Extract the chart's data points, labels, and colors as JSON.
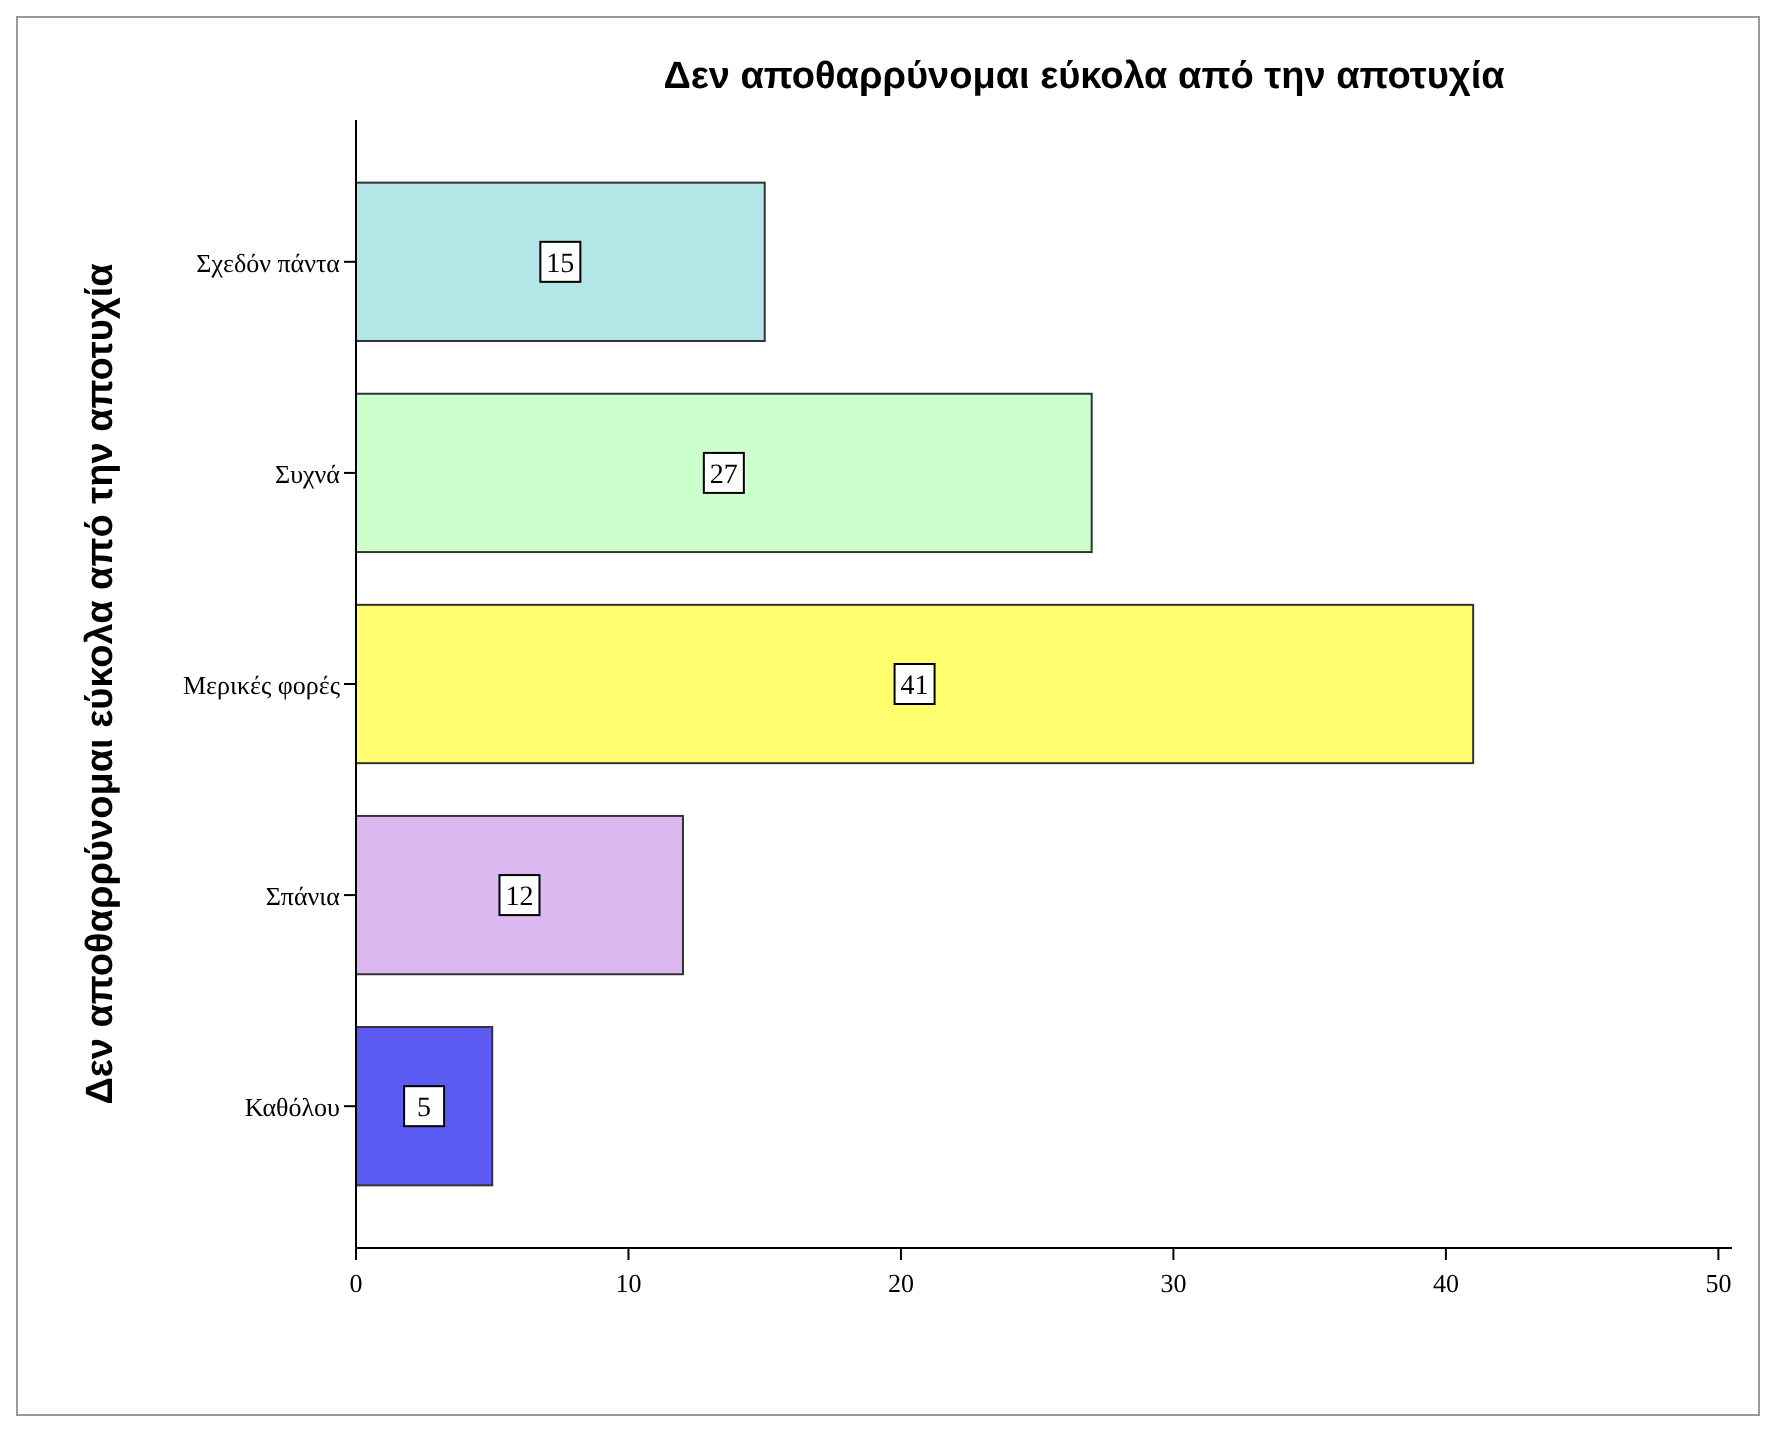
{
  "chart_data": {
    "type": "bar",
    "orientation": "horizontal",
    "title": "Δεν αποθαρρύνομαι εύκολα από την αποτυχία",
    "ylabel": "Δεν αποθαρρύνομαι εύκολα από την αποτυχία",
    "categories": [
      "Σχεδόν πάντα",
      "Συχνά",
      "Μερικές φορές",
      "Σπάνια",
      "Καθόλου"
    ],
    "values": [
      15,
      27,
      41,
      12,
      5
    ],
    "colors": [
      "#b3e6e6",
      "#ccffcc",
      "#ffff70",
      "#dbb8f0",
      "#5c5cf5"
    ],
    "xlim": [
      0,
      50.5
    ],
    "xticks": [
      0,
      10,
      20,
      30,
      40,
      50
    ],
    "grid": false,
    "data_labels": true
  }
}
